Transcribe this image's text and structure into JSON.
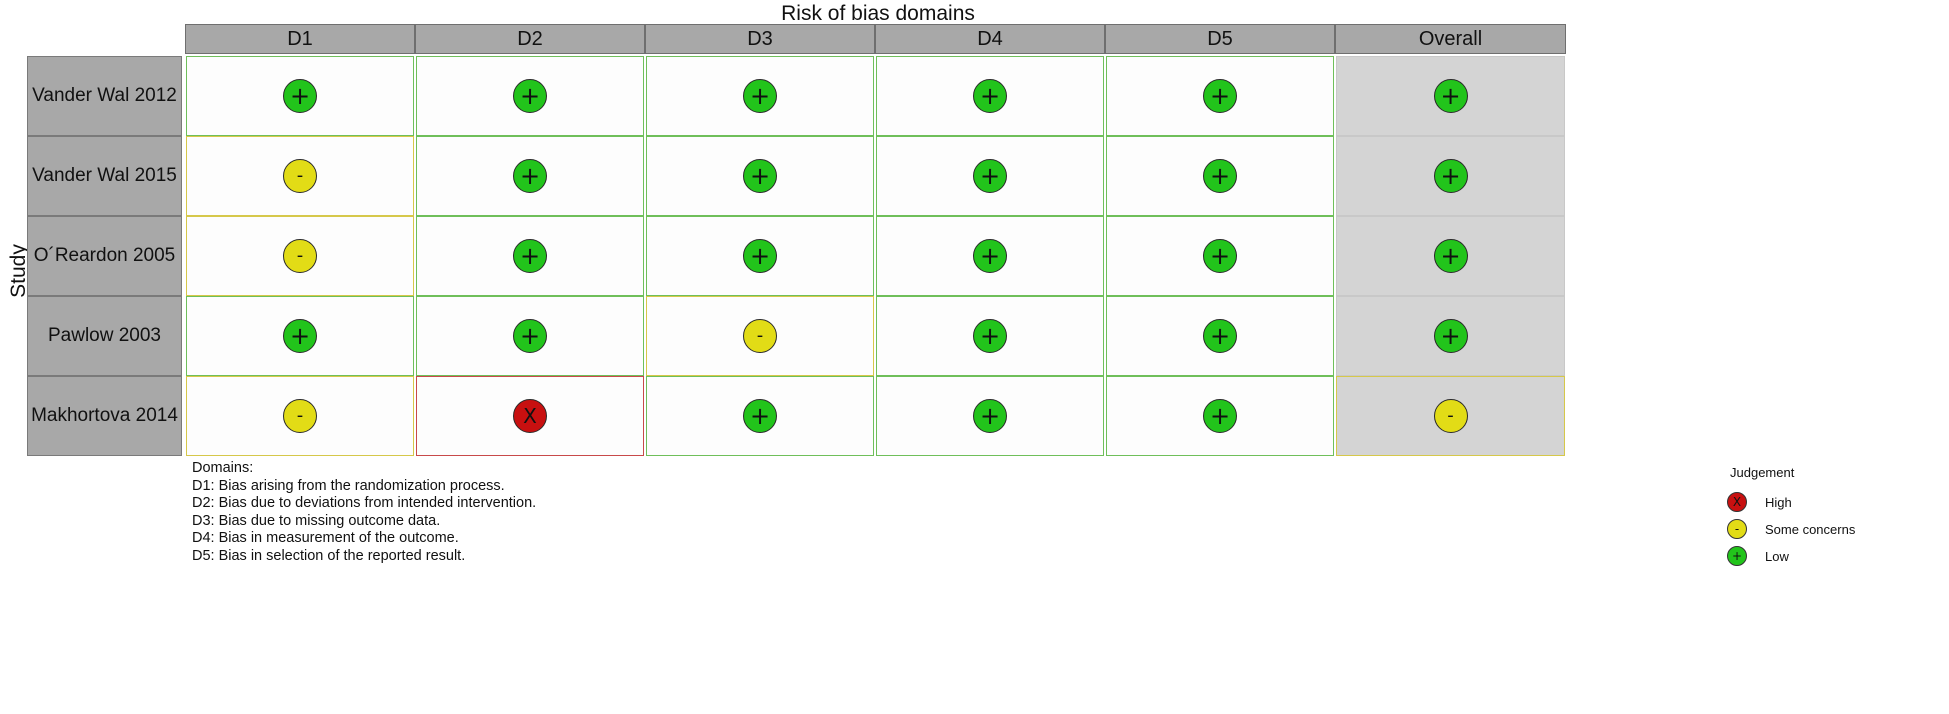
{
  "chart_data": {
    "type": "table",
    "title": "Risk of bias domains",
    "ylabel": "Study",
    "columns": [
      "D1",
      "D2",
      "D3",
      "D4",
      "D5",
      "Overall"
    ],
    "rows": [
      {
        "study": "Vander Wal 2012",
        "judgements": [
          "low",
          "low",
          "low",
          "low",
          "low",
          "low"
        ]
      },
      {
        "study": "Vander Wal 2015",
        "judgements": [
          "some",
          "low",
          "low",
          "low",
          "low",
          "low"
        ]
      },
      {
        "study": "O´Reardon 2005",
        "judgements": [
          "some",
          "low",
          "low",
          "low",
          "low",
          "low"
        ]
      },
      {
        "study": "Pawlow 2003",
        "judgements": [
          "low",
          "low",
          "some",
          "low",
          "low",
          "low"
        ]
      },
      {
        "study": "Makhortova 2014",
        "judgements": [
          "some",
          "high",
          "low",
          "low",
          "low",
          "some"
        ]
      }
    ],
    "symbols": {
      "low": "+",
      "some": "-",
      "high": "X"
    },
    "colors": {
      "low": "#22c41b",
      "some": "#e2dc16",
      "high": "#c81010"
    }
  },
  "domains": {
    "heading": "Domains:",
    "lines": [
      "D1: Bias arising from the randomization process.",
      "D2: Bias due to deviations from intended intervention.",
      "D3: Bias due to missing outcome data.",
      "D4: Bias in measurement of the outcome.",
      "D5: Bias in selection of the reported result."
    ]
  },
  "legend": {
    "title": "Judgement",
    "items": [
      {
        "key": "high",
        "symbol": "X",
        "label": "High"
      },
      {
        "key": "some",
        "symbol": "-",
        "label": "Some concerns"
      },
      {
        "key": "low",
        "symbol": "+",
        "label": "Low"
      }
    ]
  }
}
